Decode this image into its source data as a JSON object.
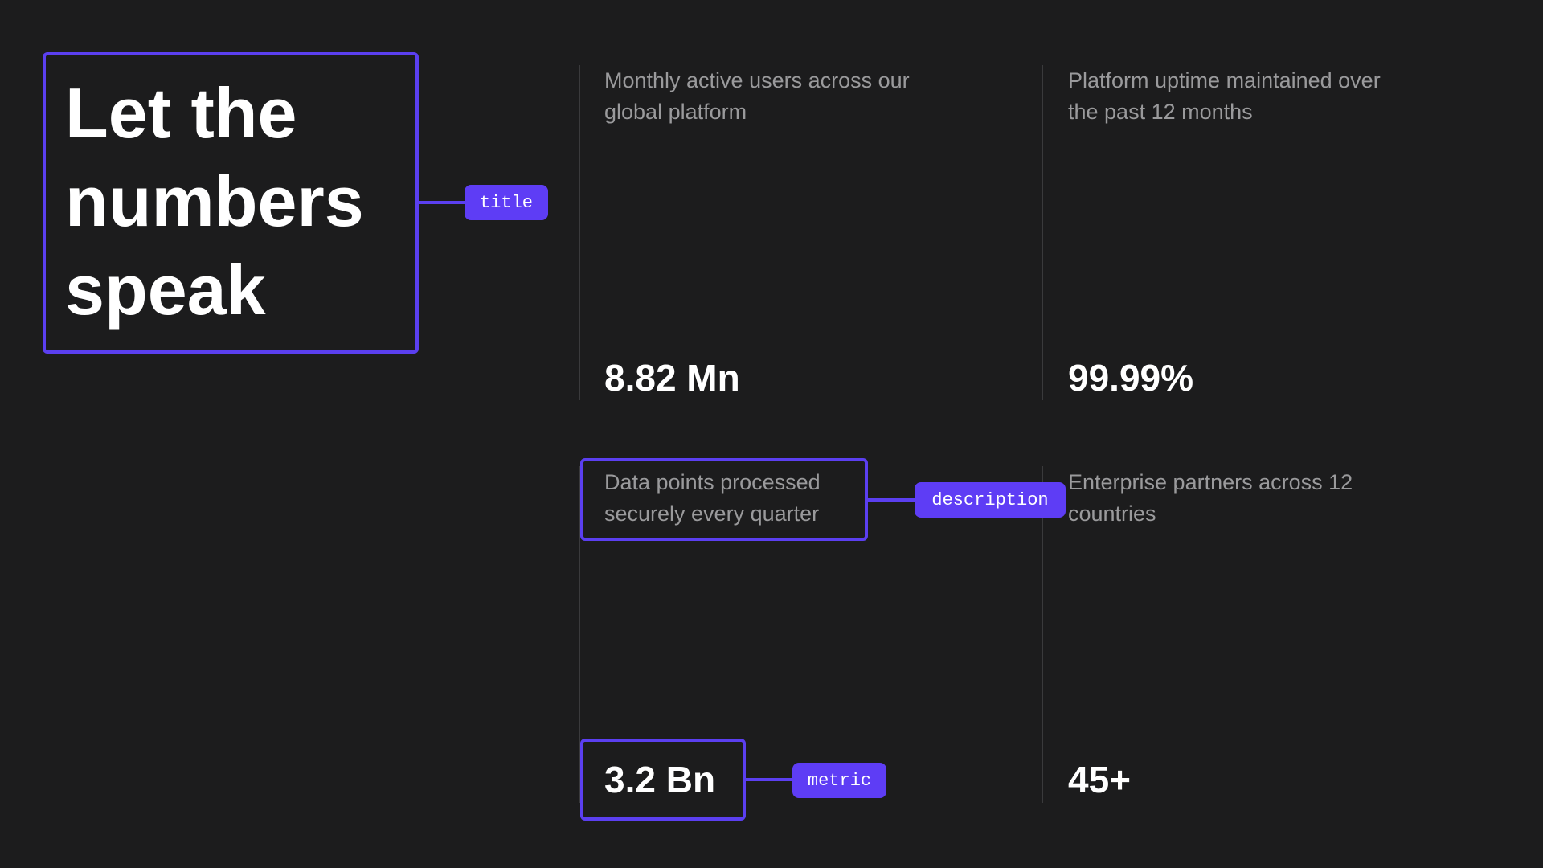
{
  "title": "Let the numbers speak",
  "stats": [
    {
      "description": "Monthly active users across our global platform",
      "metric": "8.82 Mn"
    },
    {
      "description": "Platform uptime maintained over the past 12 months",
      "metric": "99.99%"
    },
    {
      "description": "Data points processed securely every quarter",
      "metric": "3.2 Bn"
    },
    {
      "description": "Enterprise partners across 12 countries",
      "metric": "45+"
    }
  ],
  "annotations": {
    "title": "title",
    "description": "description",
    "metric": "metric"
  }
}
